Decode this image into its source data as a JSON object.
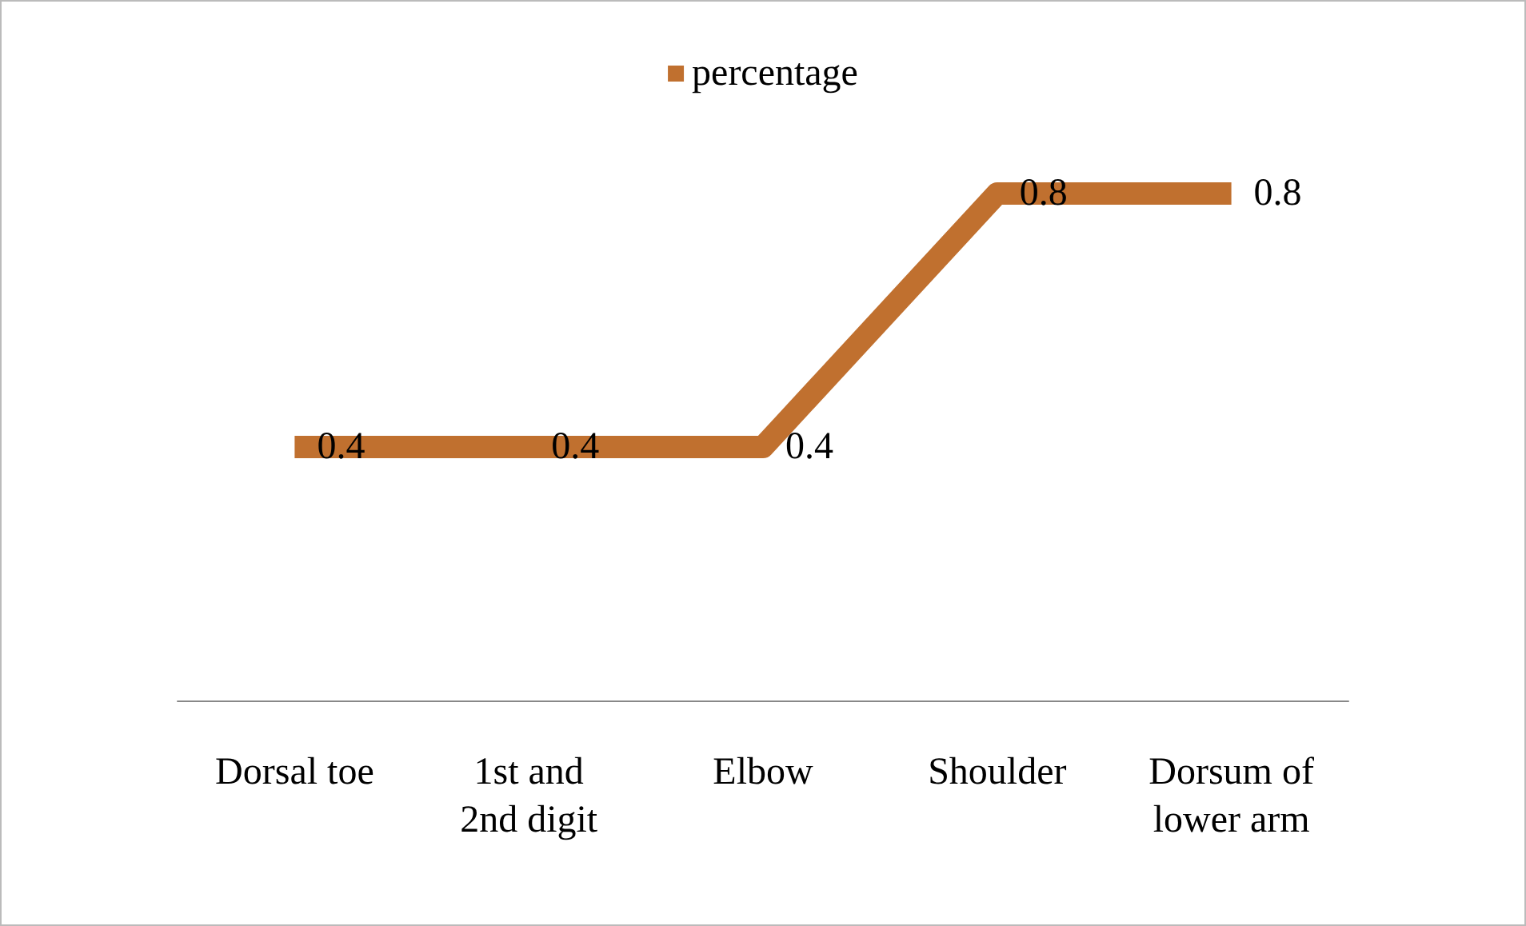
{
  "chart_data": {
    "type": "line",
    "categories": [
      "Dorsal toe",
      "1st and\n2nd digit",
      "Elbow",
      "Shoulder",
      "Dorsum of\nlower arm"
    ],
    "series": [
      {
        "name": "percentage",
        "color": "#c0702f",
        "values": [
          0.4,
          0.4,
          0.4,
          0.8,
          0.8
        ]
      }
    ],
    "data_labels": true,
    "legend": "top",
    "grid": false,
    "marker": "none"
  }
}
